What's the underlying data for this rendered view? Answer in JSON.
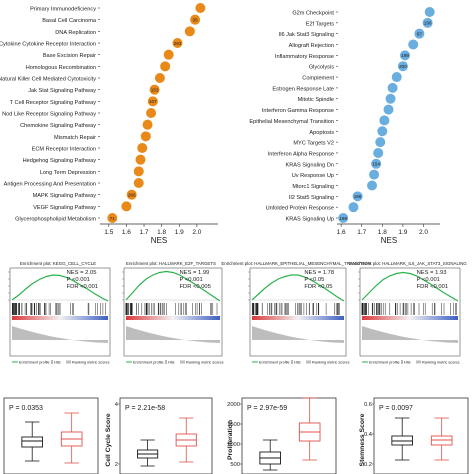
{
  "chart_data": [
    {
      "type": "scatter",
      "panel": "kegg-dotplot",
      "xlabel": "NES",
      "xlim": [
        1.45,
        2.12
      ],
      "x_ticks": [
        "1.5",
        "1.6",
        "1.7",
        "1.8",
        "1.9",
        "2.0"
      ],
      "color": "#e8891a",
      "categories": [
        "Primary Immunodeficiency",
        "Basal Cell Carcinoma",
        "DNA Replication",
        "Cytokine Cytokine Receptor Interaction",
        "Base Excision Repair",
        "Homologous Recombination",
        "Natural Killer Cell Mediated Cytotoxicity",
        "Jak Stat Signaling Pathway",
        "T Cell Receptor Signaling Pathway",
        "Nod Like Receptor Signaling Pathway",
        "Chemokine Signaling Pathway",
        "Mismatch Repair",
        "ECM Receptor Interaction",
        "Hedgehog Signaling Pathway",
        "Long Term Depression",
        "Antigen Processing And Presentation",
        "MAPK Signaling Pathway",
        "VEGF Signaling Pathway",
        "Glycerophospholipid Metabolism"
      ],
      "nes": [
        2.02,
        1.99,
        1.96,
        1.89,
        1.84,
        1.82,
        1.79,
        1.76,
        1.75,
        1.74,
        1.72,
        1.71,
        1.69,
        1.68,
        1.67,
        1.67,
        1.63,
        1.6,
        1.52
      ],
      "sizes": [
        "",
        "35",
        "",
        "263",
        "",
        "",
        "",
        "153",
        "107",
        "",
        "",
        "",
        "",
        "",
        "",
        "",
        "266",
        "",
        "71"
      ]
    },
    {
      "type": "scatter",
      "panel": "hallmark-dotplot",
      "xlabel": "NES",
      "xlim": [
        1.58,
        2.08
      ],
      "x_ticks": [
        "1.6",
        "1.7",
        "1.8",
        "1.9",
        "2.0"
      ],
      "color": "#6aaee0",
      "categories": [
        "G2m Checkpoint",
        "E2f Targets",
        "Il6 Jak Stat3 Signaling",
        "Allograft Rejection",
        "Inflammatory Response",
        "Glycolysis",
        "Complement",
        "Estrogen Response Late",
        "Mitotic Spindle",
        "Interferon Gamma Response",
        "Epithelial Mesenchymal Transition",
        "Apoptosis",
        "MYC Targets V2",
        "Interferon Alpha Response",
        "KRAS Signaling Dn",
        "Uv Response Up",
        "Mtorc1 Signaling",
        "Il2 Stat5 Signaling",
        "Unfolded Protein Response",
        "KRAS Signaling Up"
      ],
      "nes": [
        2.03,
        2.02,
        1.98,
        1.95,
        1.91,
        1.9,
        1.87,
        1.85,
        1.84,
        1.83,
        1.81,
        1.8,
        1.79,
        1.78,
        1.77,
        1.76,
        1.75,
        1.68,
        1.66,
        1.61
      ],
      "sizes": [
        "",
        "190",
        "87",
        "",
        "199",
        "200",
        "",
        "",
        "",
        "",
        "",
        "",
        "",
        "",
        "154",
        "",
        "",
        "196",
        "",
        "198"
      ]
    },
    {
      "type": "line",
      "panel": "gsea-enrichment-plots",
      "plots": [
        {
          "title": "Enrichment plot: KEGG_CELL_CYCLE",
          "nes": "NES = 2.05",
          "p": "P <0.001",
          "fdr": "FDR <0.001",
          "curve": [
            0,
            0.1,
            0.22,
            0.33,
            0.41,
            0.47,
            0.5,
            0.49,
            0.45,
            0.38,
            0.3,
            0.22,
            0.13,
            0.05,
            -0.02
          ]
        },
        {
          "title": "Enrichment plot: HALLMARK_E2F_TARGETS",
          "nes": "NES = 1.99",
          "p": "P <0.001",
          "fdr": "FDR <0.005",
          "curve": [
            0,
            0.15,
            0.3,
            0.42,
            0.5,
            0.55,
            0.57,
            0.55,
            0.5,
            0.42,
            0.34,
            0.25,
            0.16,
            0.07,
            -0.02
          ]
        },
        {
          "title": "Enrichment plot: HALLMARK_EPITHELIAL_MESENCHYMAL_TRANSITION",
          "nes": "NES = 1.78",
          "p": "P <0.05",
          "fdr": "FDR <0.05",
          "curve": [
            0,
            0.12,
            0.24,
            0.34,
            0.42,
            0.47,
            0.5,
            0.5,
            0.46,
            0.4,
            0.32,
            0.24,
            0.15,
            0.06,
            -0.02
          ]
        },
        {
          "title": "Enrichment plot: HALLMARK_IL6_JAK_STAT3_SIGNALING",
          "nes": "NES = 1.93",
          "p": "P <0.001",
          "fdr": "FDR <0.001",
          "curve": [
            0,
            0.14,
            0.28,
            0.4,
            0.48,
            0.53,
            0.55,
            0.53,
            0.48,
            0.4,
            0.32,
            0.23,
            0.14,
            0.06,
            -0.02
          ]
        }
      ],
      "legend_labels": [
        "Enrichment profile",
        "Hits",
        "Ranking metric scores"
      ]
    },
    {
      "type": "box",
      "panel": "boxplots",
      "plots": [
        {
          "p": "P = 0.0353",
          "ylabel": "",
          "y_ticks": []
        },
        {
          "p": "P = 2.21e-58",
          "ylabel": "Cell Cycle Score",
          "y_ticks": [
            "4",
            "2"
          ]
        },
        {
          "p": "P = 2.97e-59",
          "ylabel": "Proliferation",
          "y_ticks": [
            "2000",
            "1500",
            "1000",
            "500"
          ]
        },
        {
          "p": "P = 0.0097",
          "ylabel": "Stemness Score",
          "y_ticks": [
            "0.6",
            "0.4",
            "0.2"
          ]
        }
      ],
      "group_colors": [
        "#1a1a1a",
        "#e0524a"
      ]
    }
  ]
}
